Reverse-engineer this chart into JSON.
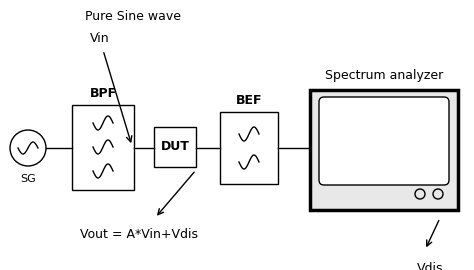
{
  "bg_color": "#ffffff",
  "text_color": "#000000",
  "title": "Pure Sine wave",
  "vin_label": "Vin",
  "vout_label": "Vout = A*Vin+Vdis",
  "vdis_label": "Vdis",
  "spectrum_label": "Spectrum analyzer",
  "sg_label": "SG",
  "bpf_label": "BPF",
  "dut_label": "DUT",
  "bef_label": "BEF",
  "figsize": [
    4.74,
    2.7
  ],
  "dpi": 100
}
